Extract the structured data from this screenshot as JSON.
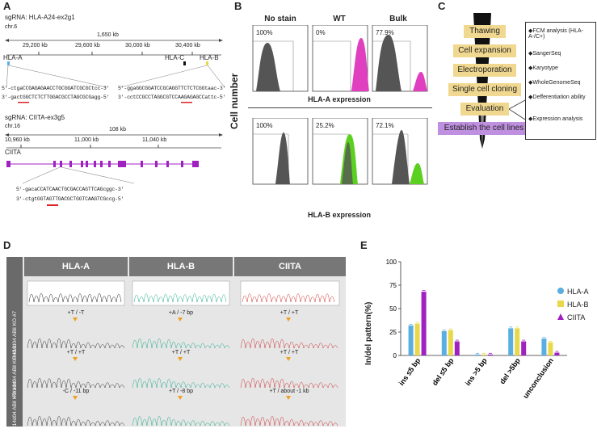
{
  "panels": {
    "a": "A",
    "b": "B",
    "c": "C",
    "d": "D",
    "e": "E"
  },
  "panelA": {
    "sg1": "sgRNA: HLA-A24-ex2g1",
    "chr1": "chr.6",
    "span1": "1,650 kb",
    "ticks1": [
      "29,200 kb",
      "29,600 kb",
      "30,000 kb",
      "30,400 kb"
    ],
    "genes1": [
      "HLA-A",
      "HLA-C",
      "HLA-B"
    ],
    "seqL1": "5'-ctgaCCGAGAGAACCTGCGGATCGCGCtcc-3'",
    "seqL2": "3'-gactGGCTCTCTTGGACGCCTAGCGCGagg-5'",
    "seqR1": "5'-ggaGGCGGATCCGCAGGTTCTCTCGGtaac-3'",
    "seqR2": "3'-cctCCGCCTAGGCGTCCAAGAGAGCCattc-5'",
    "sg2": "sgRNA: CIITA-ex3g5",
    "chr2": "chr.16",
    "span2": "108 kb",
    "ticks2": [
      "10,960 kb",
      "11,000 kb",
      "11,040 kb"
    ],
    "gene2": "CIITA",
    "seq3a": "5'-gacaCCATCAACTGCGACCAGTTCAGcggc-3'",
    "seq3b": "3'-ctgtGGTAGTTGACGCTGGTCAAGTCGccg-5'"
  },
  "panelB": {
    "ylabel": "Cell number",
    "cols": [
      "No stain",
      "WT",
      "Bulk"
    ],
    "rowA": [
      "100%",
      "0%",
      "77.9%"
    ],
    "rowB": [
      "100%",
      "25.2%",
      "72.1%"
    ],
    "xlabelA": "HLA-A expression",
    "xlabelB": "HLA-B expression"
  },
  "panelC": {
    "steps": [
      "Thawing",
      "Cell expansion",
      "Electroporation",
      "Single cell cloning",
      "Evaluation",
      "Establish the cell lines"
    ],
    "evaluation": [
      "◆FCM analysis (HLA-A-/C+)",
      "◆SangerSeq",
      "◆Karyotype",
      "◆WholeGenomeSeq",
      "◆Defferentiation ability",
      "◆Expression analysis"
    ]
  },
  "panelD": {
    "headers": [
      "HLA-A",
      "HLA-B",
      "CIITA"
    ],
    "rows": [
      {
        "label": "FH14d04 ABⅡ KO #7",
        "muts": [
          "+T / -T",
          "+A / -7 bp",
          "+T / +T"
        ]
      },
      {
        "label": "FH14d04 ABⅡ KO #13",
        "muts": [
          "+T / +T",
          "+T / +T",
          "+T / +T"
        ]
      },
      {
        "label": "FH14d04 ABⅡ KO #24",
        "muts": [
          "-C / -11 bp",
          "+T / -8 bp",
          "+T / about -1 kb"
        ]
      }
    ]
  },
  "chart_data": {
    "type": "bar",
    "title": "",
    "ylabel": "In/del pattern(%)",
    "xlabel": "",
    "ylim": [
      0,
      100
    ],
    "yticks": [
      "0",
      "25",
      "50",
      "75",
      "100"
    ],
    "categories": [
      "ins ≤5 bp",
      "del ≤5 bp",
      "ins >5 bp",
      "del >5bp",
      "unconclusion"
    ],
    "series": [
      {
        "name": "HLA-A",
        "color": "#5aaee0",
        "values": [
          32,
          26,
          1,
          29,
          18
        ]
      },
      {
        "name": "HLA-B",
        "color": "#e8d84a",
        "values": [
          34,
          27,
          1,
          29,
          14
        ]
      },
      {
        "name": "CIITA",
        "color": "#a020c0",
        "values": [
          68,
          15,
          1,
          15,
          3
        ]
      }
    ]
  }
}
